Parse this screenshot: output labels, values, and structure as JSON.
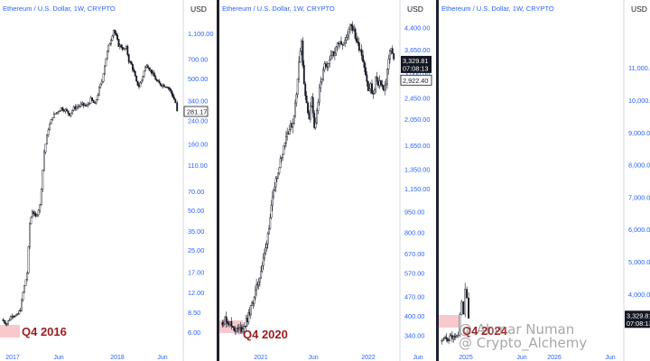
{
  "chart_data": [
    {
      "type": "candlestick",
      "title": "Ethereum / U.S. Dollar, 1W, CRYPTO",
      "axis_unit": "USD",
      "scale": "log",
      "yticks": [
        "1,100.00",
        "700.00",
        "500.00",
        "340.00",
        "240.00",
        "160.00",
        "110.00",
        "70.00",
        "50.00",
        "35.00",
        "25.00",
        "17.00",
        "12.00",
        "8.50",
        "6.00"
      ],
      "ylim": [
        5,
        1400
      ],
      "xticks": [
        "2017",
        "Jun",
        "2018",
        "Jun"
      ],
      "price_tag": "281.17",
      "annotation": "Q4 2016",
      "path": [
        [
          0,
          7.5
        ],
        [
          6,
          7.0
        ],
        [
          12,
          8.2
        ],
        [
          18,
          8.0
        ],
        [
          22,
          9.0
        ],
        [
          25,
          12
        ],
        [
          30,
          17
        ],
        [
          33,
          40
        ],
        [
          36,
          50
        ],
        [
          40,
          45
        ],
        [
          45,
          55
        ],
        [
          50,
          140
        ],
        [
          55,
          210
        ],
        [
          60,
          260
        ],
        [
          65,
          280
        ],
        [
          70,
          300
        ],
        [
          75,
          290
        ],
        [
          80,
          270
        ],
        [
          85,
          300
        ],
        [
          90,
          310
        ],
        [
          95,
          320
        ],
        [
          100,
          310
        ],
        [
          105,
          350
        ],
        [
          110,
          320
        ],
        [
          115,
          420
        ],
        [
          118,
          480
        ],
        [
          120,
          560
        ],
        [
          123,
          720
        ],
        [
          126,
          880
        ],
        [
          129,
          1000
        ],
        [
          132,
          1180
        ],
        [
          135,
          1050
        ],
        [
          138,
          900
        ],
        [
          141,
          880
        ],
        [
          144,
          830
        ],
        [
          147,
          860
        ],
        [
          150,
          690
        ],
        [
          153,
          640
        ],
        [
          156,
          560
        ],
        [
          159,
          470
        ],
        [
          162,
          440
        ],
        [
          165,
          490
        ],
        [
          168,
          570
        ],
        [
          171,
          650
        ],
        [
          174,
          600
        ],
        [
          177,
          560
        ],
        [
          180,
          520
        ],
        [
          183,
          480
        ],
        [
          186,
          460
        ],
        [
          190,
          450
        ],
        [
          195,
          440
        ],
        [
          198,
          420
        ],
        [
          202,
          370
        ],
        [
          205,
          330
        ],
        [
          207,
          281
        ]
      ]
    },
    {
      "type": "candlestick",
      "title": "Ethereum / U.S. Dollar, 1W, CRYPTO",
      "axis_unit": "USD",
      "scale": "log",
      "yticks": [
        "4,400.00",
        "3,650.00",
        "3,000.00",
        "2,450.00",
        "2,050.00",
        "1,650.00",
        "1,350.00",
        "1,150.00",
        "950.00",
        "800.00",
        "670.00",
        "570.00",
        "470.00",
        "400.00",
        "340.00"
      ],
      "ylim": [
        320,
        4700
      ],
      "xticks": [
        "2021",
        "Jun",
        "2022",
        "Jun"
      ],
      "price_tag": "3,329.81",
      "timer_tag": "07:08:13",
      "price_tag_2": "2,922.40",
      "annotation": "Q4 2020",
      "path": [
        [
          0,
          380
        ],
        [
          6,
          390
        ],
        [
          12,
          370
        ],
        [
          18,
          355
        ],
        [
          24,
          360
        ],
        [
          28,
          375
        ],
        [
          32,
          400
        ],
        [
          36,
          440
        ],
        [
          40,
          490
        ],
        [
          44,
          540
        ],
        [
          48,
          610
        ],
        [
          52,
          700
        ],
        [
          56,
          850
        ],
        [
          60,
          1050
        ],
        [
          64,
          1250
        ],
        [
          68,
          1400
        ],
        [
          72,
          1580
        ],
        [
          76,
          1800
        ],
        [
          80,
          1900
        ],
        [
          84,
          2000
        ],
        [
          88,
          2500
        ],
        [
          91,
          3400
        ],
        [
          94,
          3900
        ],
        [
          97,
          2700
        ],
        [
          100,
          2300
        ],
        [
          103,
          2100
        ],
        [
          106,
          2400
        ],
        [
          109,
          1900
        ],
        [
          112,
          2200
        ],
        [
          115,
          2600
        ],
        [
          118,
          2900
        ],
        [
          121,
          3200
        ],
        [
          124,
          3100
        ],
        [
          127,
          3300
        ],
        [
          130,
          3700
        ],
        [
          133,
          3500
        ],
        [
          136,
          3900
        ],
        [
          139,
          4000
        ],
        [
          142,
          3800
        ],
        [
          145,
          3900
        ],
        [
          148,
          4200
        ],
        [
          151,
          4600
        ],
        [
          154,
          4400
        ],
        [
          157,
          4100
        ],
        [
          160,
          3800
        ],
        [
          163,
          3700
        ],
        [
          166,
          3400
        ],
        [
          169,
          3000
        ],
        [
          172,
          2600
        ],
        [
          175,
          2700
        ],
        [
          178,
          2500
        ],
        [
          181,
          2900
        ],
        [
          184,
          2700
        ],
        [
          187,
          2800
        ],
        [
          190,
          2600
        ],
        [
          193,
          2800
        ],
        [
          196,
          3400
        ],
        [
          199,
          3700
        ],
        [
          202,
          3330
        ]
      ]
    },
    {
      "type": "candlestick",
      "title": "Ethereum / U.S. Dollar, 1W, CRYPTO",
      "axis_unit": "USD",
      "scale": "linear",
      "yticks": [
        "11,000.00",
        "10,000.00",
        "9,000.00",
        "8,000.00",
        "7,000.00",
        "6,000.00",
        "5,000.00",
        "4,000.00"
      ],
      "ylim": [
        2500,
        12500
      ],
      "xticks": [
        "2025",
        "Jun",
        "2026",
        "Jun"
      ],
      "price_tag": "3,329.81",
      "timer_tag": "07:08:13",
      "annotation": "Q4 2024",
      "path": [
        [
          0,
          2550
        ],
        [
          4,
          2600
        ],
        [
          8,
          2620
        ],
        [
          12,
          2700
        ],
        [
          16,
          2650
        ],
        [
          20,
          2750
        ],
        [
          22,
          3400
        ],
        [
          24,
          3700
        ],
        [
          26,
          3450
        ],
        [
          28,
          4050
        ],
        [
          30,
          3900
        ],
        [
          32,
          3330
        ]
      ]
    }
  ],
  "watermark": {
    "line1": "@ Ahmar Numan",
    "line2": "@ Crypto_Alchemy"
  },
  "colors": {
    "up": "#131722",
    "down": "#131722",
    "axis_text": "#2962ff",
    "annotation": "#9b1c1c",
    "highlight": "#f7c9cc"
  }
}
